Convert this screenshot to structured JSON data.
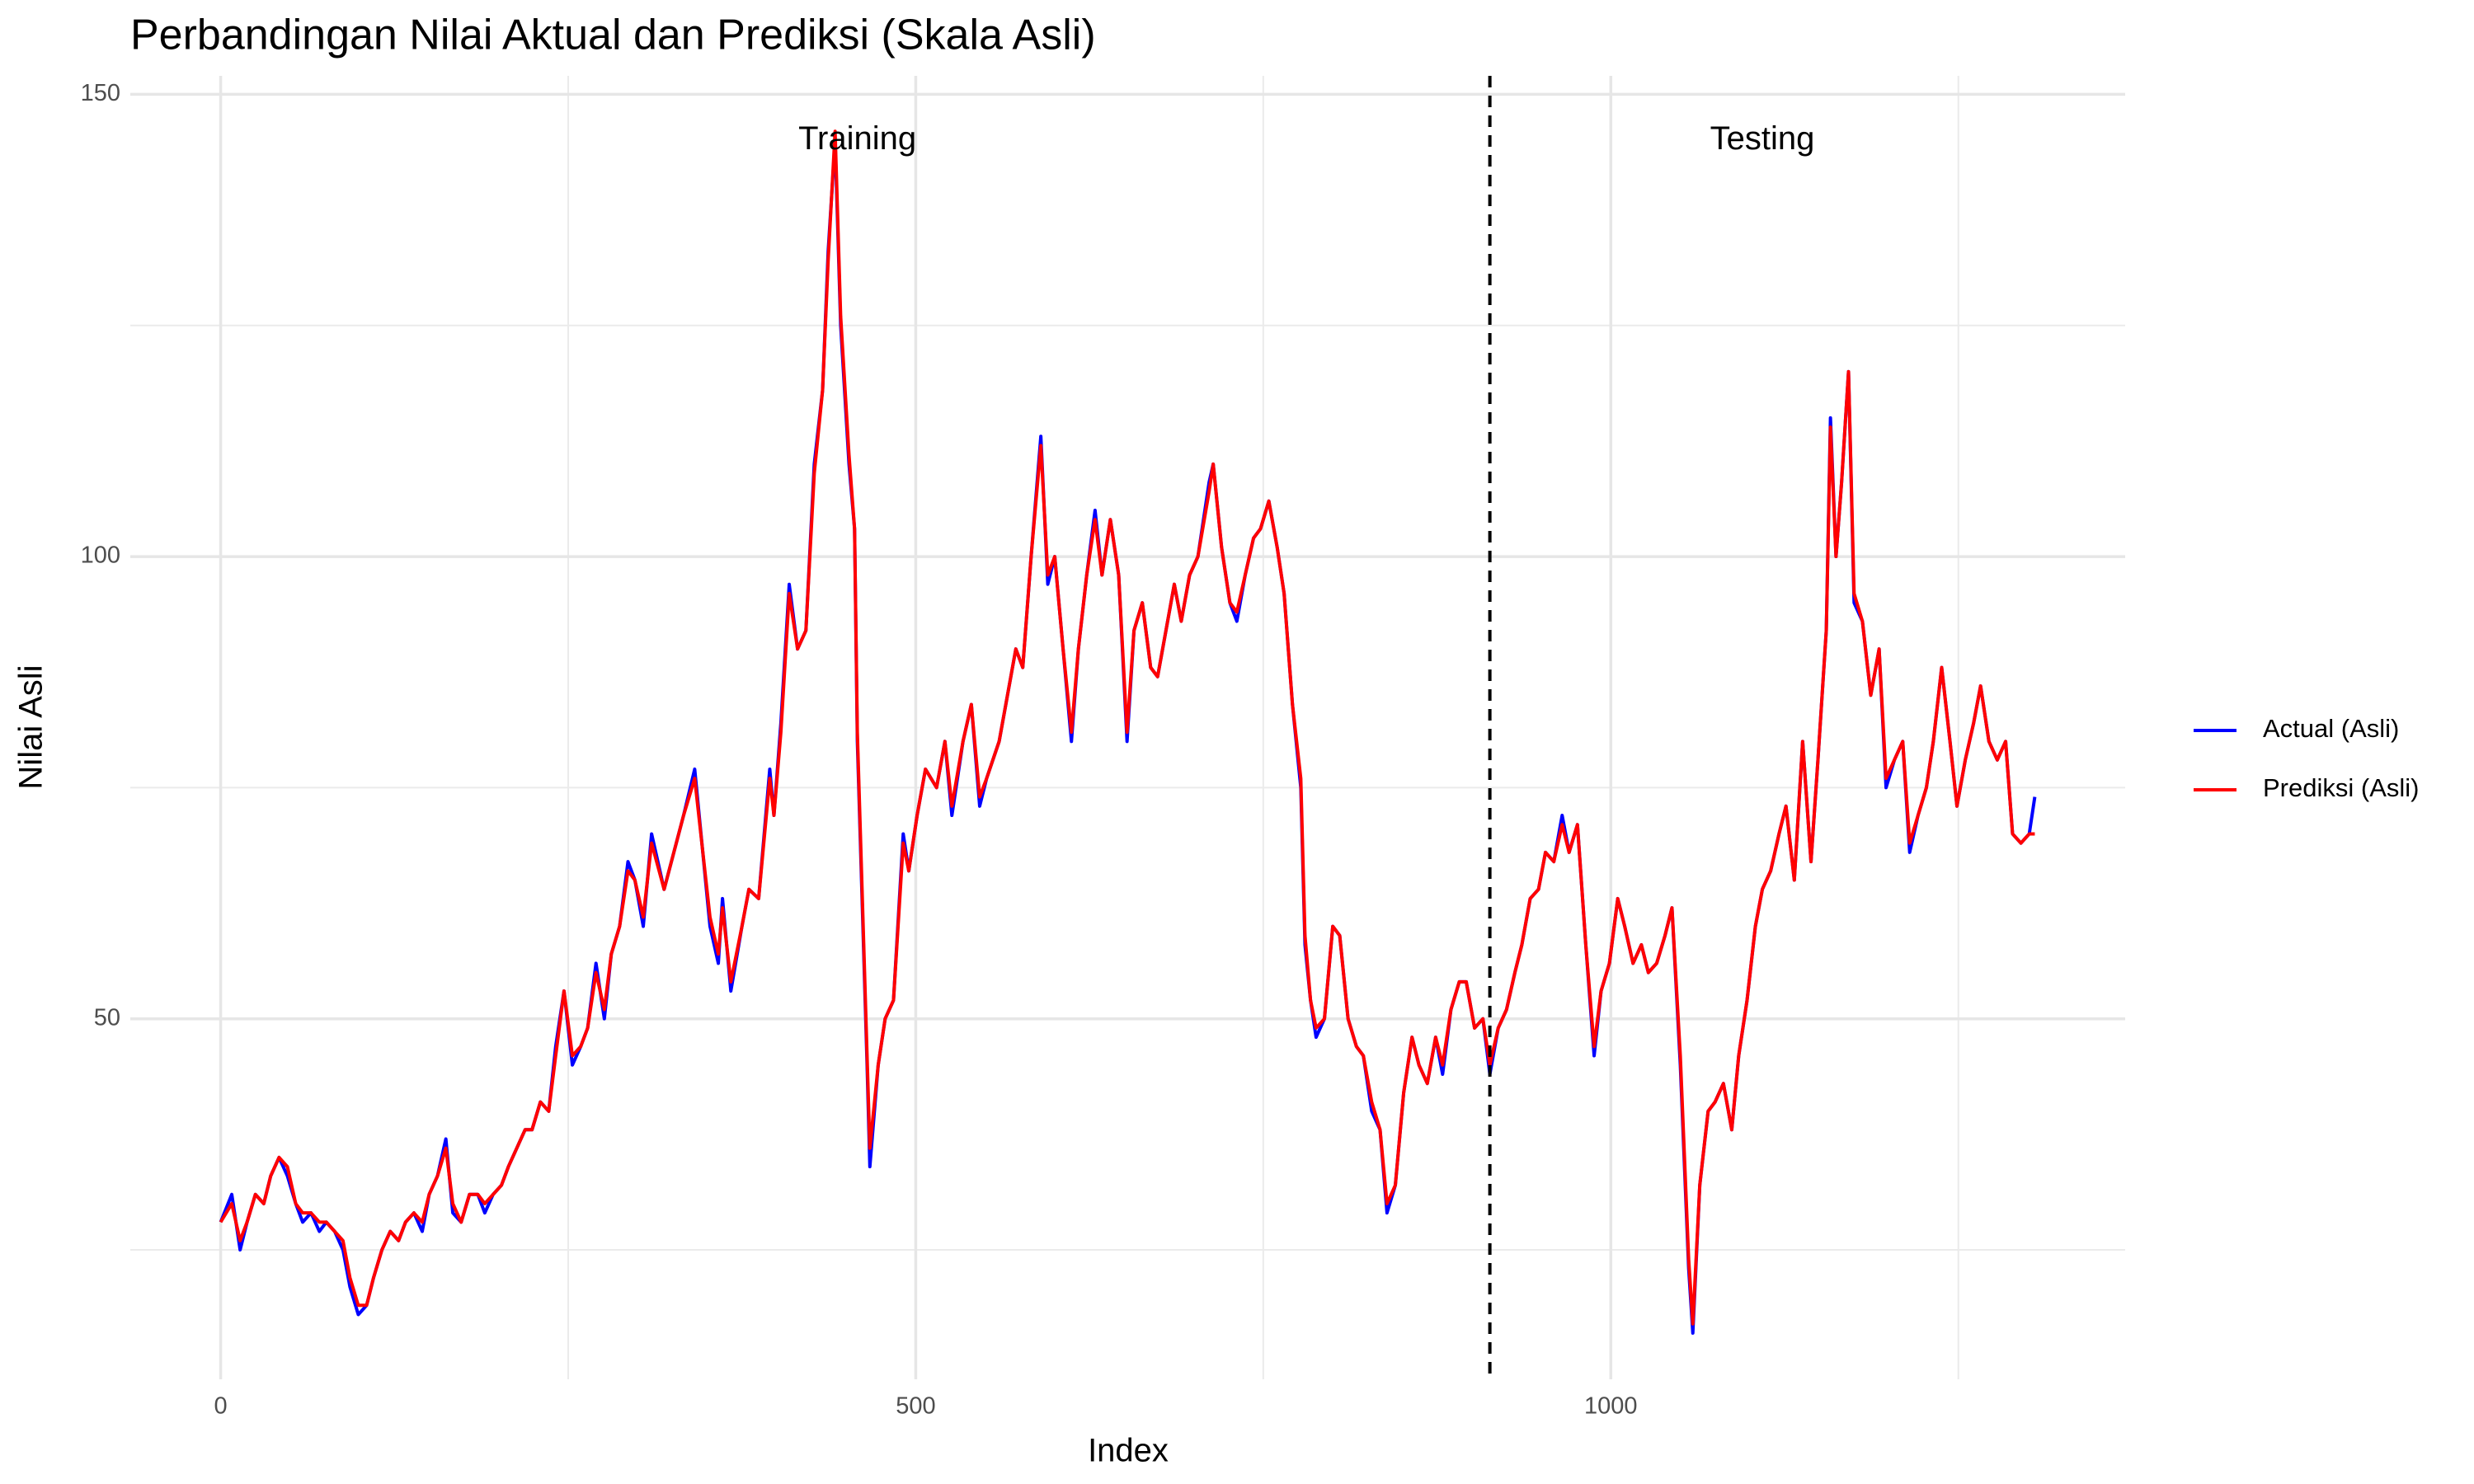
{
  "chart_data": {
    "type": "line",
    "title": "Perbandingan Nilai Aktual dan Prediksi (Skala Asli)",
    "x_label": "Index",
    "y_label": "Nilai Asli",
    "x": [
      0,
      8,
      14,
      19,
      25,
      31,
      36,
      42,
      48,
      54,
      59,
      65,
      71,
      76,
      82,
      88,
      93,
      99,
      105,
      110,
      116,
      122,
      128,
      133,
      139,
      145,
      150,
      156,
      162,
      167,
      173,
      179,
      185,
      190,
      196,
      202,
      207,
      213,
      219,
      224,
      230,
      236,
      241,
      247,
      253,
      259,
      264,
      270,
      276,
      281,
      287,
      293,
      298,
      304,
      310,
      319,
      333,
      341,
      352,
      358,
      361,
      367,
      375,
      380,
      387,
      395,
      398,
      403,
      409,
      415,
      421,
      427,
      433,
      437,
      442,
      446,
      452,
      456,
      458,
      461,
      465,
      467,
      473,
      478,
      484,
      491,
      495,
      501,
      507,
      515,
      521,
      526,
      534,
      540,
      546,
      551,
      560,
      566,
      572,
      577,
      583,
      590,
      595,
      600,
      606,
      612,
      617,
      623,
      629,
      634,
      640,
      646,
      652,
      657,
      663,
      669,
      674,
      680,
      686,
      691,
      697,
      703,
      711,
      714,
      720,
      726,
      731,
      737,
      743,
      748,
      754,
      760,
      765,
      771,
      777,
      780,
      784,
      788,
      794,
      800,
      805,
      811,
      817,
      822,
      828,
      834,
      839,
      845,
      851,
      857,
      862,
      868,
      874,
      879,
      885,
      891,
      896,
      902,
      908,
      913,
      919,
      925,
      931,
      936,
      942,
      948,
      953,
      959,
      965,
      970,
      976,
      982,
      988,
      993,
      999,
      1005,
      1010,
      1016,
      1022,
      1027,
      1033,
      1039,
      1044,
      1050,
      1056,
      1059,
      1064,
      1070,
      1075,
      1081,
      1087,
      1092,
      1098,
      1104,
      1109,
      1115,
      1121,
      1126,
      1132,
      1138,
      1144,
      1149,
      1155,
      1158,
      1162,
      1166,
      1171,
      1175,
      1181,
      1187,
      1193,
      1198,
      1204,
      1210,
      1215,
      1221,
      1227,
      1232,
      1238,
      1244,
      1249,
      1255,
      1261,
      1266,
      1272,
      1278,
      1284,
      1289,
      1295,
      1301,
      1305
    ],
    "series": [
      {
        "name": "Actual (Asli)",
        "color": "#0000ff",
        "values": [
          28,
          31,
          25,
          28,
          31,
          30,
          33,
          35,
          33,
          30,
          28,
          29,
          27,
          28,
          27,
          25,
          21,
          18,
          19,
          22,
          25,
          27,
          26,
          28,
          29,
          27,
          31,
          33,
          37,
          29,
          28,
          31,
          31,
          29,
          31,
          32,
          34,
          36,
          38,
          38,
          41,
          40,
          47,
          53,
          45,
          47,
          49,
          56,
          50,
          57,
          60,
          67,
          65,
          60,
          70,
          64,
          72,
          77,
          60,
          56,
          63,
          53,
          60,
          64,
          63,
          77,
          72,
          82,
          97,
          90,
          92,
          110,
          118,
          133,
          145,
          125,
          110,
          103,
          80,
          65,
          45,
          34,
          45,
          50,
          52,
          70,
          66,
          72,
          77,
          75,
          80,
          72,
          80,
          84,
          73,
          76,
          80,
          85,
          90,
          88,
          100,
          113,
          97,
          100,
          90,
          80,
          90,
          98,
          105,
          98,
          104,
          98,
          80,
          92,
          95,
          88,
          87,
          92,
          97,
          93,
          98,
          100,
          108,
          110,
          101,
          95,
          93,
          98,
          102,
          103,
          106,
          101,
          96,
          84,
          75,
          58,
          52,
          48,
          50,
          60,
          59,
          50,
          47,
          46,
          40,
          38,
          29,
          32,
          42,
          48,
          45,
          43,
          48,
          44,
          51,
          54,
          54,
          49,
          50,
          44,
          49,
          51,
          55,
          58,
          63,
          64,
          68,
          67,
          72,
          68,
          71,
          58,
          46,
          53,
          56,
          63,
          60,
          56,
          58,
          55,
          56,
          59,
          62,
          45,
          23,
          16,
          32,
          40,
          41,
          43,
          38,
          46,
          52,
          60,
          64,
          66,
          70,
          73,
          65,
          80,
          67,
          78,
          92,
          115,
          100,
          108,
          120,
          95,
          93,
          85,
          90,
          75,
          78,
          80,
          68,
          72,
          75,
          80,
          88,
          80,
          73,
          78,
          82,
          86,
          80,
          78,
          80,
          70,
          69,
          70,
          74
        ]
      },
      {
        "name": "Prediksi (Asli)",
        "color": "#ff0000",
        "values": [
          28,
          30,
          26,
          28,
          31,
          30,
          33,
          35,
          34,
          30,
          29,
          29,
          28,
          28,
          27,
          26,
          22,
          19,
          19,
          22,
          25,
          27,
          26,
          28,
          29,
          28,
          31,
          33,
          36,
          30,
          28,
          31,
          31,
          30,
          31,
          32,
          34,
          36,
          38,
          38,
          41,
          40,
          46,
          53,
          46,
          47,
          49,
          55,
          51,
          57,
          60,
          66,
          65,
          61,
          69,
          64,
          72,
          76,
          61,
          57,
          62,
          54,
          60,
          64,
          63,
          76,
          72,
          81,
          96,
          90,
          92,
          109,
          118,
          132,
          146,
          126,
          111,
          103,
          81,
          66,
          46,
          36,
          45,
          50,
          52,
          69,
          66,
          72,
          77,
          75,
          80,
          73,
          80,
          84,
          74,
          76,
          80,
          85,
          90,
          88,
          100,
          112,
          98,
          100,
          90,
          81,
          90,
          98,
          104,
          98,
          104,
          98,
          81,
          92,
          95,
          88,
          87,
          92,
          97,
          93,
          98,
          100,
          107,
          110,
          101,
          95,
          94,
          98,
          102,
          103,
          106,
          101,
          96,
          84,
          76,
          59,
          52,
          49,
          50,
          60,
          59,
          50,
          47,
          46,
          41,
          38,
          30,
          32,
          42,
          48,
          45,
          43,
          48,
          45,
          51,
          54,
          54,
          49,
          50,
          45,
          49,
          51,
          55,
          58,
          63,
          64,
          68,
          67,
          71,
          68,
          71,
          58,
          47,
          53,
          56,
          63,
          60,
          56,
          58,
          55,
          56,
          59,
          62,
          46,
          24,
          17,
          32,
          40,
          41,
          43,
          38,
          46,
          52,
          60,
          64,
          66,
          70,
          73,
          65,
          80,
          67,
          78,
          92,
          114,
          100,
          108,
          120,
          96,
          93,
          85,
          90,
          76,
          78,
          80,
          69,
          72,
          75,
          80,
          88,
          80,
          73,
          78,
          82,
          86,
          80,
          78,
          80,
          70,
          69,
          70,
          70
        ]
      }
    ],
    "xlim": [
      -65,
      1370
    ],
    "ylim": [
      11,
      152
    ],
    "xticks": [
      0,
      500,
      1000
    ],
    "yticks": [
      50,
      100,
      150
    ],
    "x_minor_grid": [
      250,
      750,
      1250
    ],
    "y_minor_grid": [
      25,
      75,
      125
    ],
    "grid": true,
    "vline": {
      "x": 913,
      "color": "#000000",
      "dashed": true
    },
    "annotations": [
      {
        "text": "Training",
        "x": 458,
        "y": 145
      },
      {
        "text": "Testing",
        "x": 1109,
        "y": 145
      }
    ],
    "legend": "right"
  }
}
